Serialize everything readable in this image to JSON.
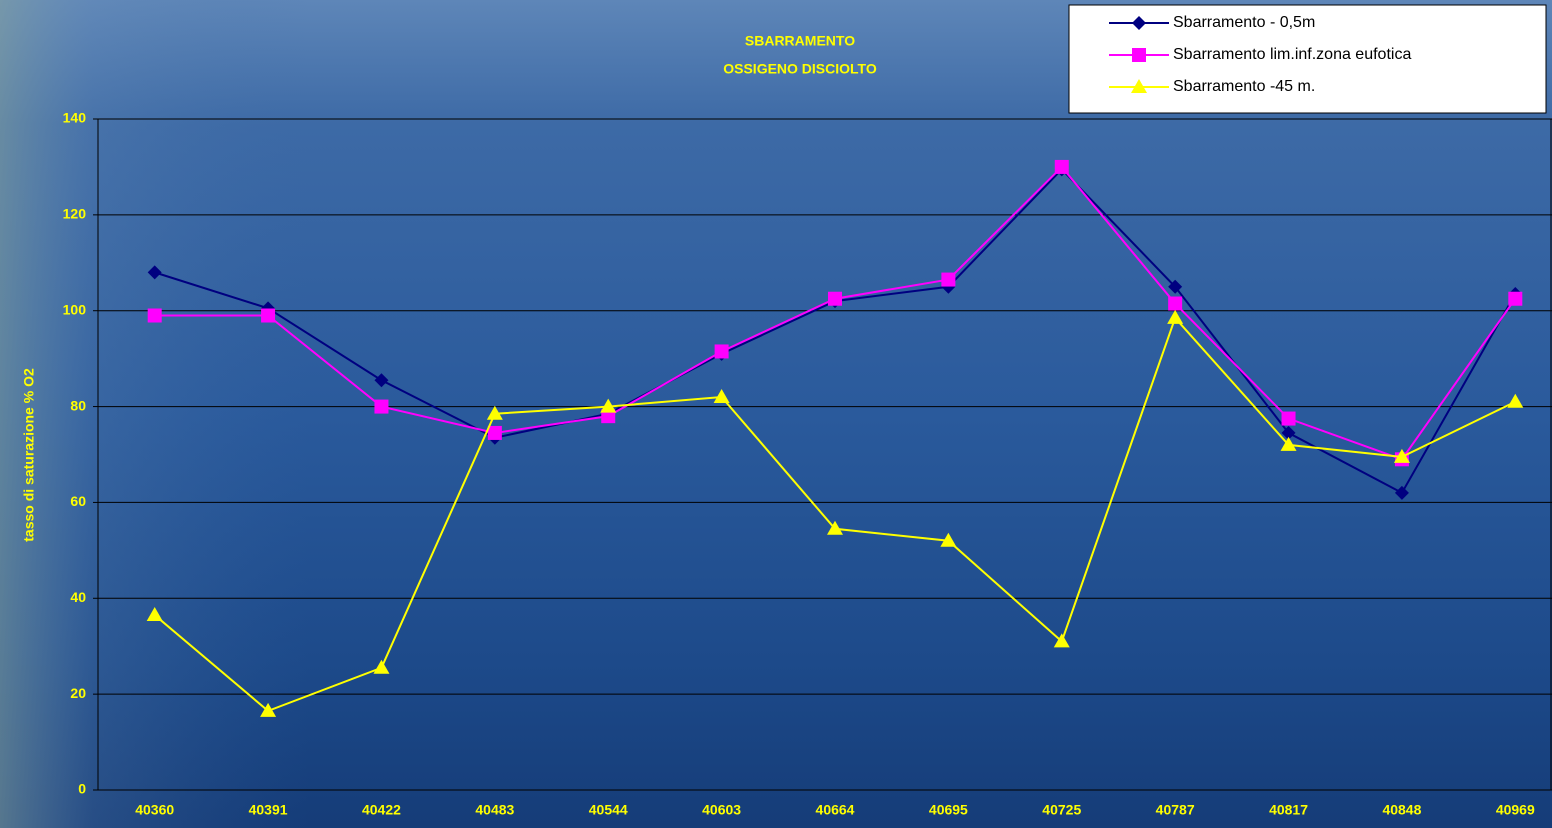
{
  "chart_data": {
    "type": "line",
    "title": "SBARRAMENTO",
    "subtitle": "OSSIGENO DISCIOLTO",
    "y_label": "tasso di saturazione % O2",
    "categories": [
      "40360",
      "40391",
      "40422",
      "40483",
      "40544",
      "40603",
      "40664",
      "40695",
      "40725",
      "40787",
      "40817",
      "40848",
      "40969"
    ],
    "series": [
      {
        "name": "Sbarramento - 0,5m",
        "color": "#000080",
        "marker": "diamond",
        "values": [
          108,
          100.5,
          85.5,
          73.5,
          78.5,
          91,
          102,
          105,
          129.5,
          105,
          74.5,
          62,
          103.5
        ]
      },
      {
        "name": "Sbarramento lim.inf.zona eufotica",
        "color": "#ff00ff",
        "marker": "square",
        "values": [
          99,
          99,
          80,
          74.5,
          78,
          91.5,
          102.5,
          106.5,
          130,
          101.5,
          77.5,
          69,
          102.5
        ]
      },
      {
        "name": "Sbarramento -45 m.",
        "color": "#ffff00",
        "marker": "triangle",
        "values": [
          36.5,
          16.5,
          25.5,
          78.5,
          80,
          82,
          54.5,
          52,
          31,
          98.5,
          72,
          69.5,
          81
        ]
      }
    ],
    "ylim": [
      0,
      140
    ],
    "yticks": [
      0,
      20,
      40,
      60,
      80,
      100,
      120,
      140
    ],
    "grid": true,
    "legend": "upper right"
  }
}
